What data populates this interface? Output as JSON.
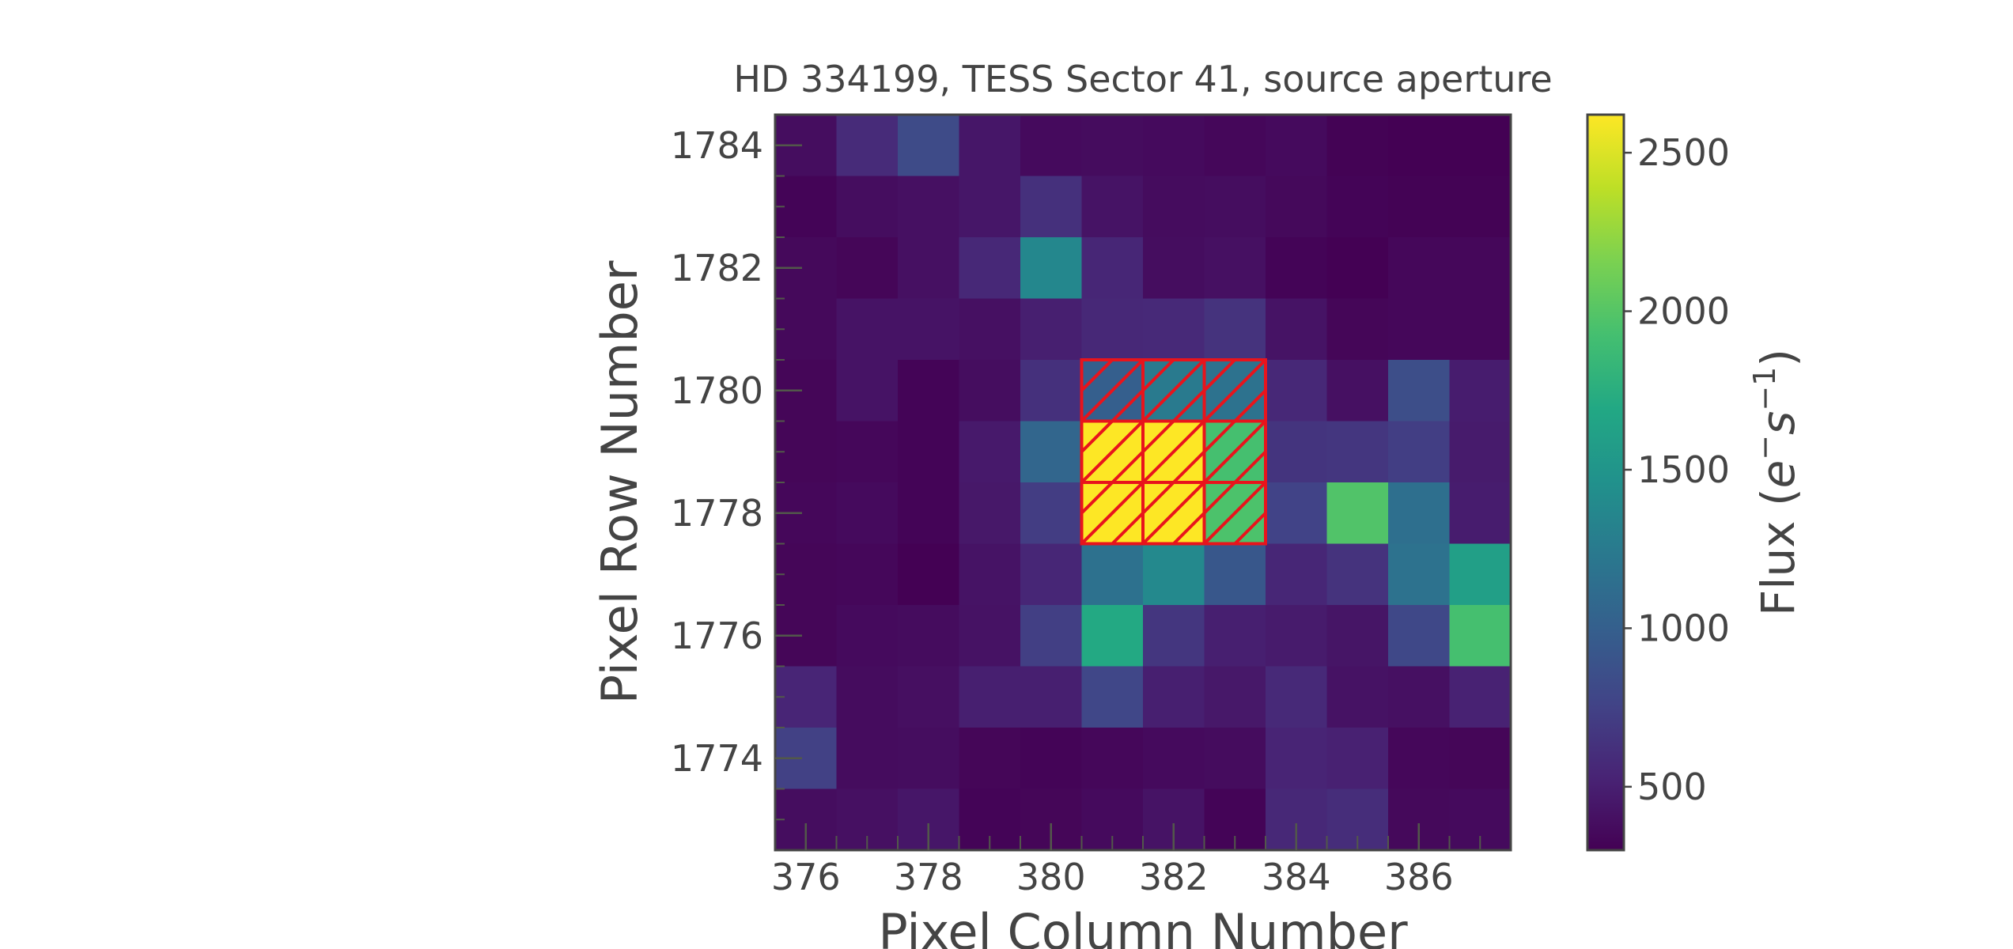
{
  "chart_data": {
    "type": "heatmap",
    "title": "HD 334199, TESS Sector 41, source aperture",
    "xlabel": "Pixel Column Number",
    "ylabel": "Pixel Row Number",
    "colorbar": {
      "label_main": "Flux (",
      "label_e": "e",
      "label_e_sup": "−",
      "label_s": "s",
      "label_s_sup": "−1",
      "label_close": ")",
      "colormap": "viridis",
      "range": [
        300,
        2620
      ],
      "ticks": [
        500,
        1000,
        1500,
        2000,
        2500
      ]
    },
    "x_values": [
      376,
      377,
      378,
      379,
      380,
      381,
      382,
      383,
      384,
      385,
      386,
      387
    ],
    "y_values": [
      1784,
      1783,
      1782,
      1781,
      1780,
      1779,
      1778,
      1777,
      1776,
      1775,
      1774,
      1773
    ],
    "xlim": [
      375.5,
      387.5
    ],
    "ylim": [
      1772.5,
      1784.5
    ],
    "x_ticks": [
      376,
      378,
      380,
      382,
      384,
      386
    ],
    "y_ticks": [
      1774,
      1776,
      1778,
      1780,
      1782,
      1784
    ],
    "grid": false,
    "flux": [
      [
        380,
        580,
        820,
        440,
        360,
        370,
        360,
        340,
        360,
        310,
        300,
        300
      ],
      [
        320,
        380,
        400,
        440,
        620,
        420,
        370,
        380,
        350,
        320,
        310,
        310
      ],
      [
        350,
        330,
        400,
        560,
        1370,
        550,
        380,
        400,
        320,
        300,
        340,
        340
      ],
      [
        350,
        420,
        420,
        400,
        500,
        560,
        570,
        640,
        420,
        330,
        340,
        340
      ],
      [
        330,
        420,
        320,
        380,
        620,
        1000,
        1250,
        1170,
        560,
        400,
        850,
        480
      ],
      [
        330,
        340,
        320,
        460,
        1060,
        2620,
        2620,
        1930,
        650,
        660,
        720,
        470
      ],
      [
        340,
        360,
        320,
        450,
        710,
        2620,
        2620,
        1960,
        760,
        1980,
        1140,
        480
      ],
      [
        330,
        340,
        300,
        420,
        550,
        1160,
        1390,
        930,
        550,
        640,
        1170,
        1600
      ],
      [
        330,
        360,
        370,
        410,
        730,
        1700,
        660,
        500,
        470,
        430,
        800,
        1930
      ],
      [
        540,
        370,
        390,
        500,
        500,
        790,
        500,
        450,
        570,
        410,
        400,
        520
      ],
      [
        740,
        370,
        380,
        330,
        320,
        340,
        360,
        370,
        530,
        510,
        340,
        330
      ],
      [
        380,
        400,
        440,
        320,
        330,
        360,
        420,
        320,
        560,
        600,
        350,
        360
      ]
    ],
    "aperture": {
      "columns": [
        381,
        382,
        383
      ],
      "rows": [
        1780,
        1779,
        1778
      ],
      "edge_color": "#e8141c",
      "hatch": "/"
    }
  }
}
